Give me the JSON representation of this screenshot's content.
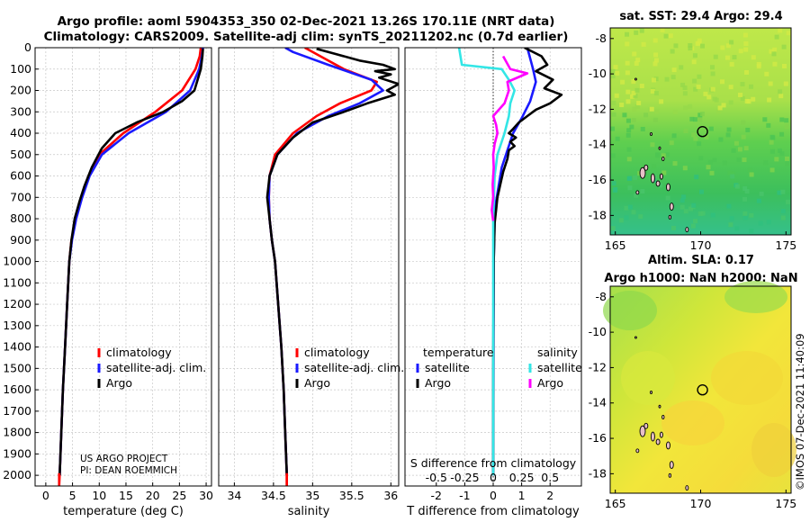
{
  "titles": {
    "line1": "Argo profile: aoml 5904353_350 02-Dec-2021 13.26S 170.11E (NRT data)",
    "line2": "Climatology: CARS2009. Satellite-adj clim: synTS_20211202.nc (0.7d earlier)"
  },
  "credits": {
    "project": "US ARGO PROJECT",
    "pi": "PI: DEAN ROEMMICH"
  },
  "watermark": "©IMOS 07-Dec-2021 11:40:09",
  "colors": {
    "climatology": "#ff0000",
    "satellite": "#1a1aff",
    "argo": "#000000",
    "sat_salinity": "#33e6e6",
    "argo_salinity": "#ff00ff"
  },
  "chart_data": [
    {
      "type": "line",
      "xlabel": "temperature (deg C)",
      "ylabel": "",
      "xlim": [
        -2,
        31
      ],
      "ylim": [
        2050,
        0
      ],
      "xticks": [
        0,
        5,
        10,
        15,
        20,
        25,
        30
      ],
      "yticks": [
        0,
        100,
        200,
        300,
        400,
        500,
        600,
        700,
        800,
        900,
        1000,
        1100,
        1200,
        1300,
        1400,
        1500,
        1600,
        1700,
        1800,
        1900,
        2000
      ],
      "legend": [
        "climatology",
        "satellite-adj. clim.",
        "Argo"
      ],
      "series": [
        {
          "name": "climatology",
          "color": "#ff0000",
          "points": [
            [
              29.0,
              0
            ],
            [
              28.8,
              40
            ],
            [
              28.0,
              100
            ],
            [
              25.5,
              200
            ],
            [
              20.5,
              300
            ],
            [
              14.5,
              400
            ],
            [
              10.0,
              500
            ],
            [
              8.0,
              600
            ],
            [
              6.6,
              700
            ],
            [
              5.6,
              800
            ],
            [
              4.8,
              900
            ],
            [
              4.4,
              1000
            ],
            [
              4.0,
              1200
            ],
            [
              3.6,
              1400
            ],
            [
              3.2,
              1600
            ],
            [
              2.9,
              1800
            ],
            [
              2.6,
              2000
            ],
            [
              2.5,
              2050
            ]
          ]
        },
        {
          "name": "satellite-adj. clim.",
          "color": "#1a1aff",
          "points": [
            [
              29.4,
              0
            ],
            [
              29.2,
              40
            ],
            [
              28.7,
              100
            ],
            [
              27.0,
              200
            ],
            [
              22.5,
              300
            ],
            [
              15.5,
              400
            ],
            [
              10.5,
              500
            ],
            [
              8.2,
              600
            ],
            [
              6.8,
              700
            ],
            [
              5.7,
              800
            ],
            [
              4.9,
              900
            ],
            [
              4.4,
              1000
            ],
            [
              4.0,
              1200
            ],
            [
              3.6,
              1400
            ],
            [
              3.2,
              1600
            ],
            [
              2.9,
              1800
            ],
            [
              2.6,
              2000
            ]
          ]
        },
        {
          "name": "Argo",
          "color": "#000000",
          "points": [
            [
              29.4,
              5
            ],
            [
              29.3,
              40
            ],
            [
              29.0,
              100
            ],
            [
              28.4,
              150
            ],
            [
              27.8,
              200
            ],
            [
              25.5,
              250
            ],
            [
              22.0,
              300
            ],
            [
              17.0,
              350
            ],
            [
              13.0,
              400
            ],
            [
              10.5,
              470
            ],
            [
              8.6,
              560
            ],
            [
              7.2,
              650
            ],
            [
              6.3,
              720
            ],
            [
              5.4,
              800
            ],
            [
              4.8,
              900
            ],
            [
              4.4,
              1000
            ],
            [
              4.0,
              1200
            ],
            [
              3.6,
              1400
            ],
            [
              3.2,
              1600
            ],
            [
              2.9,
              1800
            ],
            [
              2.6,
              2000
            ]
          ]
        }
      ]
    },
    {
      "type": "line",
      "xlabel": "salinity",
      "ylabel": "",
      "xlim": [
        33.8,
        36.1
      ],
      "ylim": [
        2050,
        0
      ],
      "xticks": [
        34,
        34.5,
        35,
        35.5,
        36
      ],
      "legend": [
        "climatology",
        "satellite-adj. clim.",
        "Argo"
      ],
      "series": [
        {
          "name": "climatology",
          "color": "#ff0000",
          "points": [
            [
              34.9,
              0
            ],
            [
              35.1,
              40
            ],
            [
              35.4,
              100
            ],
            [
              35.82,
              160
            ],
            [
              35.75,
              200
            ],
            [
              35.35,
              260
            ],
            [
              35.05,
              320
            ],
            [
              34.75,
              400
            ],
            [
              34.52,
              500
            ],
            [
              34.45,
              600
            ],
            [
              34.44,
              700
            ],
            [
              34.45,
              800
            ],
            [
              34.48,
              900
            ],
            [
              34.52,
              1000
            ],
            [
              34.56,
              1200
            ],
            [
              34.6,
              1400
            ],
            [
              34.63,
              1600
            ],
            [
              34.65,
              1800
            ],
            [
              34.67,
              2000
            ],
            [
              34.67,
              2050
            ]
          ]
        },
        {
          "name": "satellite-adj. clim.",
          "color": "#1a1aff",
          "points": [
            [
              34.65,
              0
            ],
            [
              34.75,
              20
            ],
            [
              35.2,
              80
            ],
            [
              35.75,
              150
            ],
            [
              35.9,
              200
            ],
            [
              35.6,
              260
            ],
            [
              35.2,
              320
            ],
            [
              34.8,
              400
            ],
            [
              34.55,
              500
            ],
            [
              34.45,
              600
            ],
            [
              34.44,
              700
            ],
            [
              34.45,
              800
            ],
            [
              34.48,
              900
            ],
            [
              34.52,
              1000
            ],
            [
              34.56,
              1200
            ],
            [
              34.6,
              1400
            ],
            [
              34.63,
              1600
            ],
            [
              34.65,
              1800
            ],
            [
              34.67,
              2000
            ]
          ]
        },
        {
          "name": "Argo",
          "color": "#000000",
          "points": [
            [
              35.05,
              5
            ],
            [
              35.3,
              30
            ],
            [
              35.6,
              60
            ],
            [
              35.9,
              80
            ],
            [
              36.05,
              100
            ],
            [
              35.8,
              110
            ],
            [
              36.0,
              125
            ],
            [
              35.85,
              140
            ],
            [
              36.1,
              170
            ],
            [
              35.95,
              200
            ],
            [
              36.05,
              220
            ],
            [
              35.7,
              260
            ],
            [
              35.4,
              300
            ],
            [
              35.0,
              350
            ],
            [
              34.75,
              420
            ],
            [
              34.55,
              500
            ],
            [
              34.45,
              600
            ],
            [
              34.42,
              700
            ],
            [
              34.45,
              800
            ],
            [
              34.48,
              900
            ],
            [
              34.52,
              1000
            ],
            [
              34.56,
              1200
            ],
            [
              34.6,
              1400
            ],
            [
              34.63,
              1600
            ],
            [
              34.65,
              1800
            ],
            [
              34.67,
              2000
            ]
          ]
        }
      ]
    },
    {
      "type": "line",
      "xlabel": "T difference from climatology",
      "s_axis_label": "S difference from climatology",
      "xlim": [
        -3.1,
        3.1
      ],
      "ylim": [
        2050,
        0
      ],
      "xticks": [
        -2,
        -1,
        0,
        1,
        2
      ],
      "s_xticks": [
        -0.5,
        -0.25,
        0,
        0.25,
        0.5
      ],
      "s_scale": 0.25,
      "legend_headers": [
        "temperature",
        "salinity"
      ],
      "legend": [
        "satellite",
        "Argo",
        "satellite",
        "Argo"
      ],
      "series": [
        {
          "name": "satellite",
          "group": "temperature",
          "color": "#1a1aff",
          "points": [
            [
              1.2,
              0
            ],
            [
              1.4,
              100
            ],
            [
              1.5,
              160
            ],
            [
              1.3,
              250
            ],
            [
              1.0,
              330
            ],
            [
              0.7,
              400
            ],
            [
              0.5,
              480
            ],
            [
              0.3,
              560
            ],
            [
              0.2,
              640
            ],
            [
              0.1,
              720
            ],
            [
              0.05,
              800
            ],
            [
              0.02,
              1000
            ],
            [
              0.01,
              1500
            ],
            [
              0.0,
              2000
            ]
          ]
        },
        {
          "name": "Argo",
          "group": "temperature",
          "color": "#000000",
          "points": [
            [
              1.1,
              0
            ],
            [
              1.7,
              40
            ],
            [
              1.9,
              80
            ],
            [
              1.5,
              110
            ],
            [
              2.1,
              150
            ],
            [
              1.8,
              190
            ],
            [
              2.4,
              220
            ],
            [
              2.0,
              260
            ],
            [
              1.5,
              290
            ],
            [
              1.2,
              320
            ],
            [
              0.9,
              350
            ],
            [
              0.7,
              380
            ],
            [
              0.55,
              400
            ],
            [
              0.8,
              420
            ],
            [
              0.6,
              440
            ],
            [
              0.75,
              460
            ],
            [
              0.55,
              480
            ],
            [
              0.5,
              520
            ],
            [
              0.35,
              580
            ],
            [
              0.25,
              640
            ],
            [
              0.15,
              700
            ],
            [
              0.1,
              760
            ],
            [
              0.05,
              820
            ],
            [
              0.02,
              1000
            ],
            [
              0.0,
              1500
            ],
            [
              0.0,
              2000
            ]
          ]
        },
        {
          "name": "satellite",
          "group": "salinity",
          "color": "#33e6e6",
          "points": [
            [
              -1.2,
              0
            ],
            [
              -1.1,
              80
            ],
            [
              0.3,
              100
            ],
            [
              0.55,
              150
            ],
            [
              0.75,
              200
            ],
            [
              0.6,
              260
            ],
            [
              0.55,
              320
            ],
            [
              0.4,
              400
            ],
            [
              0.15,
              500
            ],
            [
              0.05,
              600
            ],
            [
              0.0,
              800
            ],
            [
              0.0,
              2000
            ]
          ]
        },
        {
          "name": "Argo",
          "group": "salinity",
          "color": "#ff00ff",
          "points": [
            [
              0.35,
              40
            ],
            [
              0.6,
              100
            ],
            [
              1.2,
              120
            ],
            [
              0.5,
              160
            ],
            [
              0.55,
              200
            ],
            [
              0.4,
              260
            ],
            [
              0.0,
              320
            ],
            [
              0.1,
              360
            ],
            [
              0.15,
              400
            ],
            [
              0.05,
              450
            ],
            [
              0.0,
              500
            ],
            [
              0.02,
              560
            ],
            [
              -0.02,
              640
            ],
            [
              0.0,
              700
            ],
            [
              -0.05,
              760
            ],
            [
              0.0,
              810
            ]
          ]
        }
      ]
    },
    {
      "type": "heatmap",
      "title": "sat. SST: 29.4 Argo: 29.4",
      "xlim": [
        164.7,
        175.3
      ],
      "ylim": [
        -19.1,
        -7.4
      ],
      "xticks": [
        165,
        170,
        175
      ],
      "yticks": [
        -8,
        -10,
        -12,
        -14,
        -16,
        -18
      ],
      "marker": {
        "lon": 170.11,
        "lat": -13.26
      }
    },
    {
      "type": "heatmap",
      "title_line1": "Altim. SLA: 0.17",
      "title_line2": "Argo h1000: NaN h2000: NaN",
      "xlim": [
        164.7,
        175.3
      ],
      "ylim": [
        -19.1,
        -7.4
      ],
      "xticks": [
        165,
        170,
        175
      ],
      "yticks": [
        -8,
        -10,
        -12,
        -14,
        -16,
        -18
      ],
      "marker": {
        "lon": 170.11,
        "lat": -13.26
      }
    }
  ]
}
